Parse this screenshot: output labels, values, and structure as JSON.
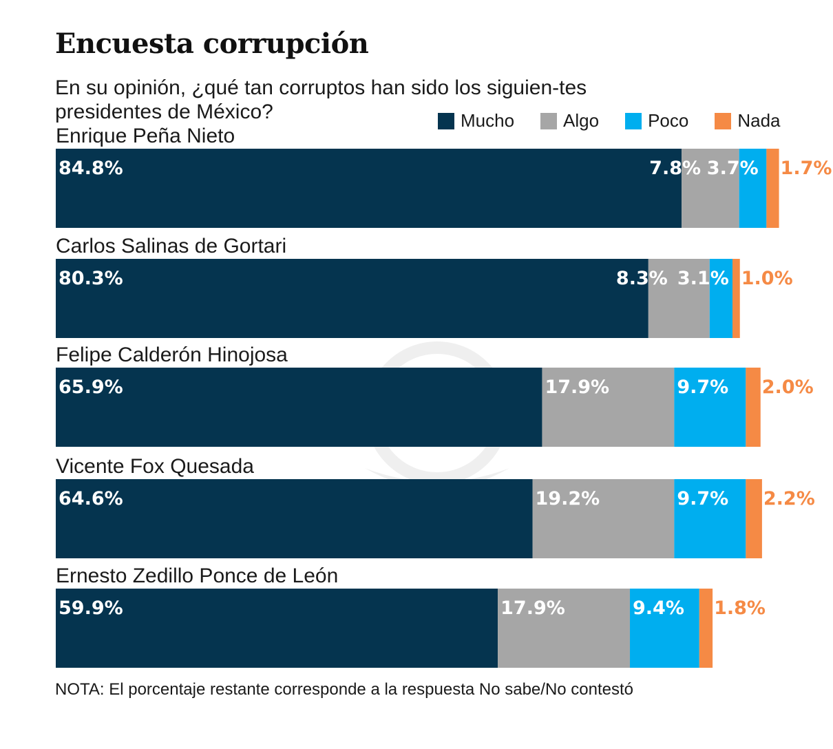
{
  "title": "Encuesta corrupción",
  "subtitle": "En su opinión, ¿qué tan corruptos han sido los siguien-tes presidentes de México?",
  "note": "NOTA: El porcentaje restante corresponde a la respuesta No sabe/No contestó",
  "colors": {
    "mucho": "#05344f",
    "algo": "#a6a6a6",
    "poco": "#00aeef",
    "nada": "#f58a45"
  },
  "chart_data": {
    "type": "bar",
    "orientation": "horizontal",
    "stacked": true,
    "legend_position": "top-right",
    "unit": "%",
    "categories": [
      "Enrique Peña Nieto",
      "Carlos Salinas de Gortari",
      "Felipe Calderón Hinojosa",
      "Vicente Fox Quesada",
      "Ernesto Zedillo Ponce de León"
    ],
    "series": [
      {
        "name": "Mucho",
        "color": "#05344f",
        "values": [
          84.8,
          80.3,
          65.9,
          64.6,
          59.9
        ],
        "labels": [
          "84.8%",
          "80.3%",
          "65.9%",
          "64.6%",
          "59.9%"
        ]
      },
      {
        "name": "Algo",
        "color": "#a6a6a6",
        "values": [
          7.8,
          8.3,
          17.9,
          19.2,
          17.9
        ],
        "labels": [
          "7.8%",
          "8.3%",
          "17.9%",
          "19.2%",
          "17.9%"
        ]
      },
      {
        "name": "Poco",
        "color": "#00aeef",
        "values": [
          3.7,
          3.1,
          9.7,
          9.7,
          9.4
        ],
        "labels": [
          "3.7%",
          "3.1%",
          "9.7%",
          "9.7%",
          "9.4%"
        ]
      },
      {
        "name": "Nada",
        "color": "#f58a45",
        "values": [
          1.7,
          1.0,
          2.0,
          2.2,
          1.8
        ],
        "labels": [
          "1.7%",
          "1.0%",
          "2.0%",
          "2.2%",
          "1.8%"
        ]
      }
    ],
    "xlim": [
      0,
      100
    ]
  }
}
